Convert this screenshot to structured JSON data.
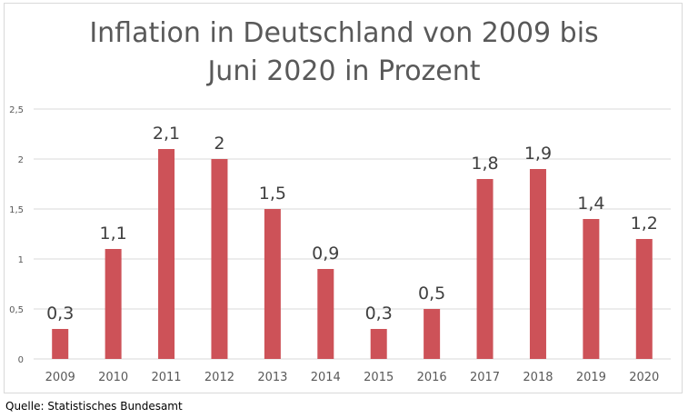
{
  "chart_data": {
    "type": "bar",
    "title_lines": [
      "Inflation in Deutschland von 2009 bis",
      "Juni 2020 in Prozent"
    ],
    "categories": [
      "2009",
      "2010",
      "2011",
      "2012",
      "2013",
      "2014",
      "2015",
      "2016",
      "2017",
      "2018",
      "2019",
      "2020"
    ],
    "values": [
      0.3,
      1.1,
      2.1,
      2,
      1.5,
      0.9,
      0.3,
      0.5,
      1.8,
      1.9,
      1.4,
      1.2
    ],
    "data_labels": [
      "0,3",
      "1,1",
      "2,1",
      "2",
      "1,5",
      "0,9",
      "0,3",
      "0,5",
      "1,8",
      "1,9",
      "1,4",
      "1,2"
    ],
    "ylim": [
      0,
      2.5
    ],
    "yticks": [
      0,
      0.5,
      1,
      1.5,
      2,
      2.5
    ],
    "ytick_labels": [
      "0",
      "0,5",
      "1",
      "1,5",
      "2",
      "2,5"
    ],
    "grid": true,
    "bar_color": "#cd5258",
    "grid_color": "#d9d9d9",
    "text_color": "#595959"
  },
  "source": "Quelle: Statistisches Bundesamt"
}
